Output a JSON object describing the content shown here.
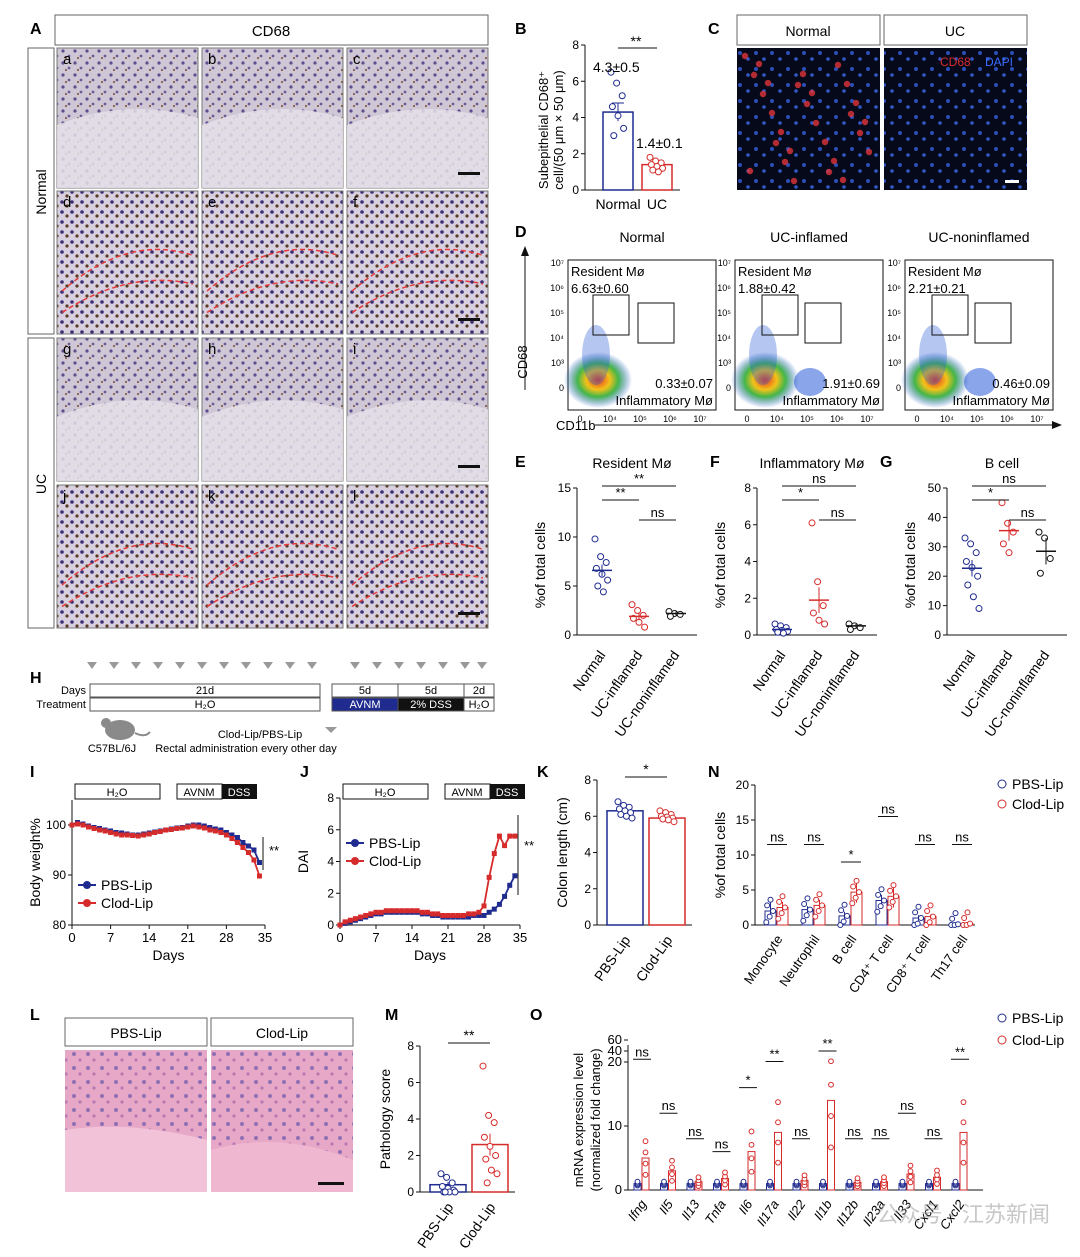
{
  "colors": {
    "blue": "#1f2b8f",
    "red": "#d62b2b",
    "green": "#2e9e3a",
    "hist_pink": "#e7a8c7",
    "hist_purple": "#7d6aa8",
    "ihc_bg": "#d9d3dd",
    "ihc_brown": "#6a3b1d"
  },
  "panelA": {
    "letter": "A",
    "title": "CD68",
    "row_normal": "Normal",
    "row_uc": "UC",
    "tiles": [
      "a",
      "b",
      "c",
      "d",
      "e",
      "f",
      "g",
      "h",
      "i",
      "j",
      "k",
      "l"
    ]
  },
  "panelB": {
    "letter": "B",
    "ylabel_line1": "Subepithelial  CD68⁺",
    "ylabel_line2": "cell/(50 μm × 50 μm)",
    "sig": "**",
    "label_normal": "4.3±0.5",
    "label_uc": "1.4±0.1"
  },
  "panelC": {
    "letter": "C",
    "col1": "Normal",
    "col2": "UC",
    "stain1": "CD68",
    "stain2": "DAPI"
  },
  "panelD": {
    "letter": "D",
    "xlabel": "CD11b",
    "ylabel": "CD68",
    "plots": [
      {
        "title": "Normal",
        "resident_label": "Resident Mø",
        "resident_value": "6.63±0.60",
        "inflam_value": "0.33±0.07",
        "inflam_label": "Inflammatory Mø"
      },
      {
        "title": "UC-inflamed",
        "resident_label": "Resident Mø",
        "resident_value": "1.88±0.42",
        "inflam_value": "1.91±0.69",
        "inflam_label": "Inflammatory Mø"
      },
      {
        "title": "UC-noninflamed",
        "resident_label": "Resident Mø",
        "resident_value": "2.21±0.21",
        "inflam_value": "0.46±0.09",
        "inflam_label": "Inflammatory Mø"
      }
    ],
    "yticks": [
      "10⁷",
      "10⁶",
      "10⁵",
      "10⁴",
      "10³",
      "0"
    ],
    "xticks": [
      "0",
      "10⁴",
      "10⁵",
      "10⁶",
      "10⁷"
    ]
  },
  "panelH": {
    "letter": "H",
    "days_label": "Days",
    "treatment_label": "Treatment",
    "seg1_days": "21d",
    "seg1_treat": "H₂O",
    "seg2_days": "5d",
    "seg2_treat": "AVNM",
    "seg3_days": "5d",
    "seg3_treat": "2% DSS",
    "seg4_days": "2d",
    "seg4_treat": "H₂O",
    "mouse": "C57BL/6J",
    "note1": "Clod-Lip/PBS-Lip",
    "note2": "Rectal administration every other day"
  },
  "panelL": {
    "letter": "L",
    "col1": "PBS-Lip",
    "col2": "Clod-Lip"
  },
  "chart_data": [
    {
      "id": "B",
      "type": "bar",
      "categories": [
        "Normal",
        "UC"
      ],
      "values": [
        4.3,
        1.4
      ],
      "errors": [
        0.5,
        0.1
      ],
      "points": [
        [
          6.5,
          5.9,
          5.2,
          4.6,
          4.1,
          3.4,
          3.0
        ],
        [
          1.8,
          1.6,
          1.5,
          1.4,
          1.3,
          1.2,
          1.1,
          1.0
        ]
      ],
      "ylim": [
        0,
        8
      ],
      "yticks": [
        0,
        2,
        4,
        6,
        8
      ]
    },
    {
      "id": "E",
      "type": "scatter",
      "title": "Resident Mø",
      "ylabel": "%of total cells",
      "categories": [
        "Normal",
        "UC-inflamed",
        "UC-noninflamed"
      ],
      "means": [
        6.6,
        1.9,
        2.2
      ],
      "errors": [
        0.6,
        0.4,
        0.2
      ],
      "points": [
        [
          9.8,
          8.0,
          7.4,
          6.8,
          6.2,
          5.6,
          5.0,
          4.4
        ],
        [
          3.1,
          2.5,
          2.0,
          1.7,
          1.3,
          0.8
        ],
        [
          2.4,
          2.2,
          2.1,
          1.9
        ]
      ],
      "ylim": [
        0,
        15
      ],
      "yticks": [
        0,
        5,
        10,
        15
      ],
      "sig": [
        [
          "**",
          "0-1"
        ],
        [
          "**",
          "0-2"
        ],
        [
          "ns",
          "1-2"
        ]
      ]
    },
    {
      "id": "F",
      "type": "scatter",
      "title": "Inflammatory Mø",
      "ylabel": "%of total cells",
      "categories": [
        "Normal",
        "UC-inflamed",
        "UC-noninflamed"
      ],
      "means": [
        0.3,
        1.9,
        0.5
      ],
      "errors": [
        0.1,
        0.7,
        0.1
      ],
      "points": [
        [
          0.6,
          0.5,
          0.4,
          0.3,
          0.25,
          0.2,
          0.15,
          0.1
        ],
        [
          6.1,
          2.9,
          1.6,
          1.2,
          0.8,
          0.6
        ],
        [
          0.6,
          0.5,
          0.4,
          0.3
        ]
      ],
      "ylim": [
        0,
        8
      ],
      "yticks": [
        0,
        2,
        4,
        6,
        8
      ],
      "sig": [
        [
          "*",
          "0-1"
        ],
        [
          "ns",
          "0-2"
        ],
        [
          "ns",
          "1-2"
        ]
      ]
    },
    {
      "id": "G",
      "type": "scatter",
      "title": "B cell",
      "ylabel": "%of total cells",
      "categories": [
        "Normal",
        "UC-inflamed",
        "UC-noninflamed"
      ],
      "means": [
        22.7,
        35.5,
        28.5
      ],
      "errors": [
        2.8,
        3.5,
        4.5
      ],
      "points": [
        [
          33,
          31,
          28,
          25,
          23,
          20,
          17,
          13,
          9
        ],
        [
          45,
          38,
          35,
          31,
          28
        ],
        [
          35,
          33,
          26,
          21
        ]
      ],
      "ylim": [
        0,
        50
      ],
      "yticks": [
        0,
        10,
        20,
        30,
        40,
        50
      ],
      "sig": [
        [
          "*",
          "0-1"
        ],
        [
          "ns",
          "0-2"
        ],
        [
          "ns",
          "1-2"
        ]
      ]
    },
    {
      "id": "I",
      "type": "line",
      "ylabel": "Body weight%",
      "xlabel": "Days",
      "bar1": "H₂O",
      "bar2a": "AVNM",
      "bar2b": "DSS",
      "x": [
        0,
        1,
        2,
        3,
        4,
        5,
        6,
        7,
        8,
        9,
        10,
        11,
        12,
        13,
        14,
        15,
        16,
        17,
        18,
        19,
        20,
        21,
        22,
        23,
        24,
        25,
        26,
        27,
        28,
        29,
        30,
        31,
        32,
        33,
        34
      ],
      "series": [
        {
          "name": "PBS-Lip",
          "values": [
            100,
            100.5,
            100.2,
            99.8,
            99.5,
            99.3,
            99,
            98.8,
            98.5,
            98.4,
            98.2,
            98,
            98,
            98.2,
            98.4,
            98.6,
            98.8,
            99,
            99.2,
            99.4,
            99.5,
            99.8,
            100,
            100,
            99.8,
            99.5,
            99.2,
            99,
            98.5,
            98,
            97.5,
            96.5,
            95.8,
            95,
            92.5
          ]
        },
        {
          "name": "Clod-Lip",
          "values": [
            100,
            100.2,
            100,
            99.6,
            99.3,
            99,
            98.8,
            98.5,
            98.2,
            98,
            98,
            97.9,
            97.8,
            98,
            98.2,
            98.5,
            98.7,
            99,
            99.1,
            99.3,
            99.4,
            99.6,
            99.8,
            99.6,
            99.4,
            99,
            98.8,
            98.5,
            98,
            97.3,
            96.5,
            95.5,
            94.5,
            93,
            89.8
          ]
        }
      ],
      "xlim": [
        0,
        35
      ],
      "ylim": [
        80,
        105
      ],
      "xticks": [
        0,
        7,
        14,
        21,
        28,
        35
      ],
      "yticks": [
        80,
        90,
        100
      ],
      "sig": "**"
    },
    {
      "id": "J",
      "type": "line",
      "ylabel": "DAI",
      "xlabel": "Days",
      "bar1": "H₂O",
      "bar2a": "AVNM",
      "bar2b": "DSS",
      "x": [
        0,
        1,
        2,
        3,
        4,
        5,
        6,
        7,
        8,
        9,
        10,
        11,
        12,
        13,
        14,
        15,
        16,
        17,
        18,
        19,
        20,
        21,
        22,
        23,
        24,
        25,
        26,
        27,
        28,
        29,
        30,
        31,
        32,
        33,
        34
      ],
      "series": [
        {
          "name": "PBS-Lip",
          "values": [
            0,
            0.1,
            0.2,
            0.3,
            0.4,
            0.5,
            0.6,
            0.7,
            0.7,
            0.8,
            0.8,
            0.8,
            0.8,
            0.8,
            0.8,
            0.8,
            0.7,
            0.7,
            0.6,
            0.6,
            0.5,
            0.5,
            0.5,
            0.5,
            0.5,
            0.5,
            0.6,
            0.6,
            0.6,
            0.8,
            1,
            1.3,
            1.8,
            2.5,
            3.1
          ]
        },
        {
          "name": "Clod-Lip",
          "values": [
            0,
            0.2,
            0.3,
            0.4,
            0.5,
            0.6,
            0.7,
            0.8,
            0.8,
            0.9,
            0.9,
            0.9,
            0.9,
            0.9,
            0.9,
            0.9,
            0.8,
            0.8,
            0.7,
            0.7,
            0.6,
            0.6,
            0.6,
            0.6,
            0.6,
            0.7,
            0.7,
            0.8,
            1.2,
            3,
            4.5,
            5.6,
            5,
            5.6,
            5.6
          ]
        }
      ],
      "xlim": [
        0,
        35
      ],
      "ylim": [
        0,
        8
      ],
      "xticks": [
        0,
        7,
        14,
        21,
        28,
        35
      ],
      "yticks": [
        0,
        2,
        4,
        6,
        8
      ],
      "sig": "**"
    },
    {
      "id": "K",
      "type": "bar",
      "ylabel": "Colon length (cm)",
      "categories": [
        "PBS-Lip",
        "Clod-Lip"
      ],
      "values": [
        6.3,
        5.9
      ],
      "errors": [
        0.15,
        0.1
      ],
      "points": [
        [
          6.8,
          6.6,
          6.5,
          6.4,
          6.3,
          6.2,
          6.1,
          6.0,
          5.9
        ],
        [
          6.3,
          6.2,
          6.1,
          6.0,
          5.95,
          5.9,
          5.85,
          5.8,
          5.7
        ]
      ],
      "ylim": [
        0,
        8
      ],
      "yticks": [
        0,
        2,
        4,
        6,
        8
      ],
      "sig": "*"
    },
    {
      "id": "M",
      "type": "bar",
      "ylabel": "Pathology score",
      "categories": [
        "PBS-Lip",
        "Clod-Lip"
      ],
      "values": [
        0.4,
        2.6
      ],
      "errors": [
        0.15,
        0.6
      ],
      "points": [
        [
          1.0,
          0.8,
          0.5,
          0.3,
          0.2,
          0.1,
          0,
          0,
          0,
          0
        ],
        [
          6.9,
          4.2,
          3.8,
          3.0,
          2.5,
          2.0,
          1.8,
          1.2,
          1.0,
          0.5
        ]
      ],
      "ylim": [
        0,
        8
      ],
      "yticks": [
        0,
        2,
        4,
        6,
        8
      ],
      "sig": "**"
    },
    {
      "id": "N",
      "type": "bar",
      "ylabel": "%of total cells",
      "legend": [
        "PBS-Lip",
        "Clod-Lip"
      ],
      "categories": [
        "Monocyte",
        "Neutrophil",
        "B cell",
        "CD4⁺ T cell",
        "CD8⁺ T cell",
        "Th17 cell"
      ],
      "series": [
        {
          "name": "PBS-Lip",
          "values": [
            2.0,
            2.2,
            1.3,
            3.5,
            1.0,
            0.1
          ],
          "errors": [
            1.2,
            0.5,
            0.6,
            0.8,
            0.4,
            0.05
          ]
        },
        {
          "name": "Clod-Lip",
          "values": [
            2.5,
            2.8,
            4.7,
            4.1,
            1.2,
            0.2
          ],
          "errors": [
            0.8,
            0.8,
            1.5,
            1.6,
            0.3,
            0.05
          ]
        }
      ],
      "ylim": [
        0,
        20
      ],
      "yticks": [
        0,
        5,
        10,
        15,
        20
      ],
      "sig": [
        "ns",
        "ns",
        "*",
        "ns",
        "ns",
        "ns"
      ]
    },
    {
      "id": "O",
      "type": "bar",
      "ylabel_line1": "mRNA expression level",
      "ylabel_line2": "(normalized fold change)",
      "legend": [
        "PBS-Lip",
        "Clod-Lip"
      ],
      "categories": [
        "Ifng",
        "Il5",
        "Il13",
        "Tnfa",
        "Il6",
        "Il17a",
        "Il22",
        "Il1b",
        "Il12b",
        "Il23a",
        "Il33",
        "Cxcl1",
        "Cxcl2"
      ],
      "series": [
        {
          "name": "PBS-Lip",
          "values": [
            1,
            1,
            1,
            1,
            1,
            1,
            1,
            1,
            1,
            1,
            1,
            1,
            1
          ],
          "errors": [
            0.2,
            0.2,
            0.2,
            0.2,
            0.2,
            0.2,
            0.2,
            0.2,
            0.2,
            0.2,
            0.2,
            0.2,
            0.2
          ]
        },
        {
          "name": "Clod-Lip",
          "values": [
            5,
            3,
            1.3,
            1.8,
            6,
            9,
            1.5,
            14,
            1.2,
            1.3,
            2.5,
            2,
            9
          ]
        }
      ],
      "sig": [
        "ns",
        "ns",
        "ns",
        "ns",
        "*",
        "**",
        "ns",
        "**",
        "ns",
        "ns",
        "ns",
        "ns",
        "**"
      ],
      "yticks": [
        0,
        10,
        20,
        40,
        60
      ]
    }
  ],
  "watermark": "公众号 · 江苏新闻"
}
